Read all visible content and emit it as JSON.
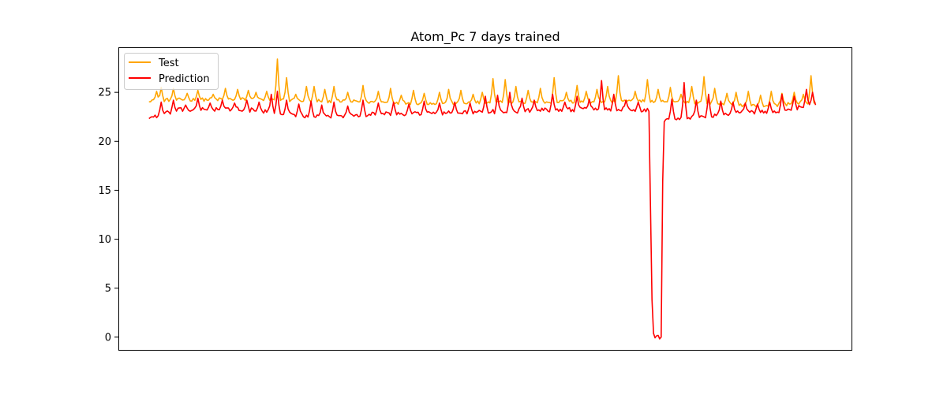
{
  "chart_data": {
    "type": "line",
    "title": "Atom_Pc 7 days trained",
    "xlabel": "",
    "ylabel": "",
    "ylim": [
      -1.3,
      29.6
    ],
    "xlim": [
      -20,
      460
    ],
    "x_ticks_shown": false,
    "y_ticks": [
      0,
      5,
      10,
      15,
      20,
      25
    ],
    "legend": {
      "placement": "top-left"
    },
    "grid": false,
    "n_points": 437,
    "series": [
      {
        "name": "Test",
        "color": "#ffa500",
        "baseline": [
          [
            0,
            24.2
          ],
          [
            60,
            24.3
          ],
          [
            120,
            24.1
          ],
          [
            180,
            23.9
          ],
          [
            250,
            24.0
          ],
          [
            310,
            24.1
          ],
          [
            360,
            24.0
          ],
          [
            400,
            23.6
          ],
          [
            436,
            24.0
          ]
        ],
        "spikes": [
          [
            5,
            25.1
          ],
          [
            8,
            25.5
          ],
          [
            16,
            25.4
          ],
          [
            25,
            24.9
          ],
          [
            32,
            25.2
          ],
          [
            42,
            24.8
          ],
          [
            50,
            25.4
          ],
          [
            58,
            25.3
          ],
          [
            65,
            25.2
          ],
          [
            70,
            25.0
          ],
          [
            77,
            25.1
          ],
          [
            84,
            28.4
          ],
          [
            90,
            26.5
          ],
          [
            96,
            24.8
          ],
          [
            103,
            25.6
          ],
          [
            108,
            25.6
          ],
          [
            115,
            25.3
          ],
          [
            121,
            25.6
          ],
          [
            130,
            25.0
          ],
          [
            140,
            25.7
          ],
          [
            150,
            25.1
          ],
          [
            158,
            25.4
          ],
          [
            165,
            24.7
          ],
          [
            173,
            25.2
          ],
          [
            180,
            24.9
          ],
          [
            190,
            25.0
          ],
          [
            196,
            25.3
          ],
          [
            204,
            25.2
          ],
          [
            212,
            24.8
          ],
          [
            218,
            25.0
          ],
          [
            225,
            26.4
          ],
          [
            233,
            26.3
          ],
          [
            240,
            25.6
          ],
          [
            248,
            25.2
          ],
          [
            256,
            25.4
          ],
          [
            265,
            26.5
          ],
          [
            273,
            25.0
          ],
          [
            280,
            25.7
          ],
          [
            286,
            25.1
          ],
          [
            293,
            25.3
          ],
          [
            300,
            25.6
          ],
          [
            307,
            26.7
          ],
          [
            318,
            25.1
          ],
          [
            326,
            26.3
          ],
          [
            333,
            25.3
          ],
          [
            341,
            25.5
          ],
          [
            348,
            24.8
          ],
          [
            355,
            25.6
          ],
          [
            363,
            26.6
          ],
          [
            370,
            25.4
          ],
          [
            378,
            24.9
          ],
          [
            384,
            25.0
          ],
          [
            392,
            25.1
          ],
          [
            400,
            24.7
          ],
          [
            407,
            25.1
          ],
          [
            414,
            24.9
          ],
          [
            422,
            25.0
          ],
          [
            428,
            24.8
          ],
          [
            433,
            26.7
          ]
        ]
      },
      {
        "name": "Prediction",
        "color": "#ff0000",
        "baseline": [
          [
            0,
            22.4
          ],
          [
            20,
            23.2
          ],
          [
            60,
            23.3
          ],
          [
            110,
            22.5
          ],
          [
            150,
            22.8
          ],
          [
            200,
            22.9
          ],
          [
            260,
            23.2
          ],
          [
            310,
            23.3
          ],
          [
            326,
            23.2
          ],
          [
            327,
            23.0
          ],
          [
            329,
            4.0
          ],
          [
            330,
            0.3
          ],
          [
            331,
            0.0
          ],
          [
            334,
            0.0
          ],
          [
            335,
            0.0
          ],
          [
            336,
            16.0
          ],
          [
            337,
            22.2
          ],
          [
            340,
            22.4
          ],
          [
            360,
            22.5
          ],
          [
            390,
            23.0
          ],
          [
            410,
            23.0
          ],
          [
            436,
            23.8
          ]
        ],
        "spikes": [
          [
            8,
            24.0
          ],
          [
            16,
            24.2
          ],
          [
            24,
            23.7
          ],
          [
            32,
            24.4
          ],
          [
            40,
            23.9
          ],
          [
            48,
            24.2
          ],
          [
            56,
            23.9
          ],
          [
            64,
            24.2
          ],
          [
            72,
            24.0
          ],
          [
            80,
            24.8
          ],
          [
            84,
            25.1
          ],
          [
            90,
            24.2
          ],
          [
            98,
            23.8
          ],
          [
            106,
            24.1
          ],
          [
            113,
            23.7
          ],
          [
            121,
            24.0
          ],
          [
            130,
            23.6
          ],
          [
            140,
            24.2
          ],
          [
            150,
            23.9
          ],
          [
            160,
            24.0
          ],
          [
            170,
            23.8
          ],
          [
            180,
            24.1
          ],
          [
            190,
            23.9
          ],
          [
            200,
            24.0
          ],
          [
            210,
            23.9
          ],
          [
            220,
            24.6
          ],
          [
            228,
            24.7
          ],
          [
            236,
            25.0
          ],
          [
            244,
            24.4
          ],
          [
            252,
            24.2
          ],
          [
            264,
            24.8
          ],
          [
            272,
            24.0
          ],
          [
            280,
            24.6
          ],
          [
            288,
            24.3
          ],
          [
            296,
            26.2
          ],
          [
            304,
            24.8
          ],
          [
            312,
            24.2
          ],
          [
            320,
            24.0
          ],
          [
            342,
            24.3
          ],
          [
            350,
            26.0
          ],
          [
            358,
            24.2
          ],
          [
            366,
            24.8
          ],
          [
            374,
            24.1
          ],
          [
            382,
            24.0
          ],
          [
            390,
            23.9
          ],
          [
            398,
            23.8
          ],
          [
            406,
            24.0
          ],
          [
            414,
            24.8
          ],
          [
            422,
            24.6
          ],
          [
            430,
            25.3
          ],
          [
            434,
            25.0
          ]
        ]
      }
    ]
  }
}
